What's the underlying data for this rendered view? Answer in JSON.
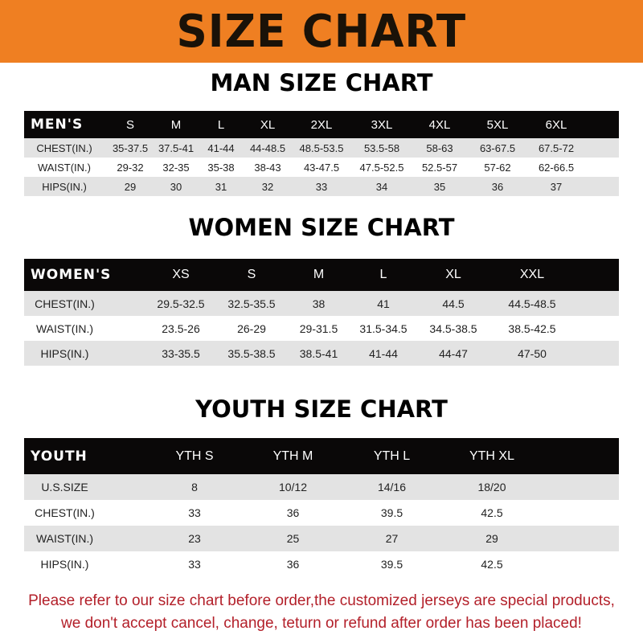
{
  "banner": {
    "title": "SIZE CHART",
    "color": "#ef7f22"
  },
  "men": {
    "title": "MAN SIZE CHART",
    "header": [
      "MEN'S",
      "S",
      "M",
      "L",
      "XL",
      "2XL",
      "3XL",
      "4XL",
      "5XL",
      "6XL"
    ],
    "rows": [
      [
        "CHEST(IN.)",
        "35-37.5",
        "37.5-41",
        "41-44",
        "44-48.5",
        "48.5-53.5",
        "53.5-58",
        "58-63",
        "63-67.5",
        "67.5-72"
      ],
      [
        "WAIST(IN.)",
        "29-32",
        "32-35",
        "35-38",
        "38-43",
        "43-47.5",
        "47.5-52.5",
        "52.5-57",
        "57-62",
        "62-66.5"
      ],
      [
        "HIPS(IN.)",
        "29",
        "30",
        "31",
        "32",
        "33",
        "34",
        "35",
        "36",
        "37"
      ]
    ]
  },
  "women": {
    "title": "WOMEN SIZE CHART",
    "header": [
      "WOMEN'S",
      "XS",
      "S",
      "M",
      "L",
      "XL",
      "XXL"
    ],
    "rows": [
      [
        "CHEST(IN.)",
        "29.5-32.5",
        "32.5-35.5",
        "38",
        "41",
        "44.5",
        "44.5-48.5"
      ],
      [
        "WAIST(IN.)",
        "23.5-26",
        "26-29",
        "29-31.5",
        "31.5-34.5",
        "34.5-38.5",
        "38.5-42.5"
      ],
      [
        "HIPS(IN.)",
        "33-35.5",
        "35.5-38.5",
        "38.5-41",
        "41-44",
        "44-47",
        "47-50"
      ]
    ]
  },
  "youth": {
    "title": "YOUTH SIZE CHART",
    "header": [
      "YOUTH",
      "YTH S",
      "YTH M",
      "YTH L",
      "YTH XL"
    ],
    "rows": [
      [
        "U.S.SIZE",
        "8",
        "10/12",
        "14/16",
        "18/20"
      ],
      [
        "CHEST(IN.)",
        "33",
        "36",
        "39.5",
        "42.5"
      ],
      [
        "WAIST(IN.)",
        "23",
        "25",
        "27",
        "29"
      ],
      [
        "HIPS(IN.)",
        "33",
        "36",
        "39.5",
        "42.5"
      ]
    ]
  },
  "footer": {
    "line1": "Please refer to our size chart before order,the customized jerseys are special products,",
    "line2": "we don't accept cancel, change, teturn or refund after order has been placed!",
    "color": "#b3202a"
  }
}
